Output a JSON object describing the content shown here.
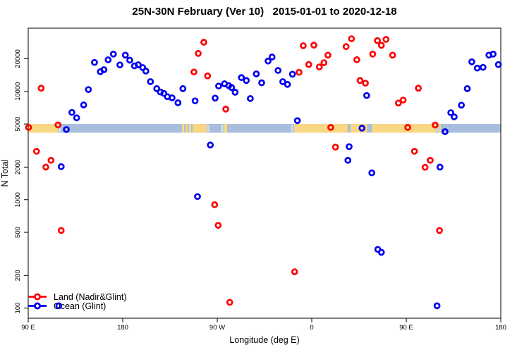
{
  "title": "25N-30N February (Ver 10)   2015-01-01 to 2020-12-18",
  "chart_data": {
    "type": "scatter",
    "title": "25N-30N February (Ver 10)   2015-01-01 to 2020-12-18",
    "xlabel": "Longitude (deg E)",
    "ylabel": "N Total",
    "x_axis": {
      "note": "axis runs 90E eastward to 180 (450 deg span); x values are degrees east of 90E",
      "range_deg": [
        0,
        450
      ],
      "tick_positions_deg": [
        0,
        90,
        180,
        270,
        360,
        450
      ],
      "tick_labels": [
        "90 E",
        "180",
        "90 W",
        "0",
        "90 E",
        "180"
      ]
    },
    "y_axis": {
      "scale": "log",
      "range": [
        81,
        38300
      ],
      "ticks": [
        100,
        200,
        500,
        1000,
        2000,
        5000,
        10000,
        20000
      ],
      "tick_labels": [
        "100",
        "200",
        "500",
        "1000",
        "2000",
        "5000",
        "10000",
        "20000"
      ]
    },
    "grid": false,
    "legend_position": "bottom-left",
    "legend": [
      {
        "label": "Land (Nadir&Glint)",
        "color": "#FF0000"
      },
      {
        "label": "Ocean (Glint)",
        "color": "#0000EE"
      }
    ],
    "surface_band": {
      "description": "land/ocean strip drawn across plot at N ~ 4600",
      "center_n": 4600,
      "ocean_color": "#A9BEDC",
      "land_color": "#F8D784",
      "shallow_color": "#CBDAEE",
      "land_segments_deg": [
        [
          0,
          28.9
        ],
        [
          146.4,
          148.4
        ],
        [
          149.8,
          151.8
        ],
        [
          153.1,
          155.1
        ],
        [
          156.5,
          169.9
        ],
        [
          186.0,
          189.4
        ],
        [
          253.2,
          388.1
        ],
        [
          390.8,
          392.9
        ]
      ],
      "ocean_inlets_deg": [
        [
          304.2,
          306.9
        ],
        [
          322.8,
          327.2
        ]
      ],
      "shallow_patches_deg": [
        [
          29.3,
          31.3
        ],
        [
          170.3,
          172.8
        ],
        [
          183.5,
          185.7
        ],
        [
          250.3,
          252.6
        ],
        [
          388.5,
          390.3
        ]
      ]
    },
    "series": [
      {
        "name": "Land (Nadir&Glint)",
        "color": "#FF0000",
        "marker": "open-circle",
        "points": [
          [
            12.3,
            10700
          ],
          [
            28.4,
            4900
          ],
          [
            0.3,
            4650
          ],
          [
            7.9,
            2800
          ],
          [
            21.7,
            2310
          ],
          [
            16.8,
            2000
          ],
          [
            31.4,
            520
          ],
          [
            167.2,
            28400
          ],
          [
            161.9,
            22400
          ],
          [
            157.8,
            15100
          ],
          [
            170.8,
            13900
          ],
          [
            188.1,
            6860
          ],
          [
            257.9,
            15000
          ],
          [
            267.1,
            17700
          ],
          [
            277.2,
            16800
          ],
          [
            281.6,
            18400
          ],
          [
            285.4,
            21600
          ],
          [
            261.9,
            26400
          ],
          [
            272.0,
            26700
          ],
          [
            302.7,
            25900
          ],
          [
            307.8,
            30600
          ],
          [
            332.5,
            29400
          ],
          [
            336.3,
            26600
          ],
          [
            340.7,
            30200
          ],
          [
            328.0,
            22100
          ],
          [
            347.0,
            21600
          ],
          [
            312.9,
            19600
          ],
          [
            316.0,
            12600
          ],
          [
            321.1,
            11900
          ],
          [
            371.5,
            10700
          ],
          [
            357.0,
            8300
          ],
          [
            352.5,
            7800
          ],
          [
            361.4,
            4650
          ],
          [
            387.5,
            4890
          ],
          [
            288.1,
            4650
          ],
          [
            292.6,
            3060
          ],
          [
            177.5,
            900
          ],
          [
            180.9,
            580
          ],
          [
            253.7,
            216
          ],
          [
            191.9,
            113
          ],
          [
            367.8,
            2800
          ],
          [
            382.8,
            2310
          ],
          [
            377.9,
            1990
          ],
          [
            391.6,
            520
          ]
        ]
      },
      {
        "name": "Ocean (Glint)",
        "color": "#0000EE",
        "marker": "open-circle",
        "points": [
          [
            63.1,
            18500
          ],
          [
            68.7,
            15200
          ],
          [
            72.1,
            15850
          ],
          [
            76.1,
            19550
          ],
          [
            81.1,
            22100
          ],
          [
            87.3,
            17550
          ],
          [
            92.5,
            21600
          ],
          [
            96.7,
            19400
          ],
          [
            101.2,
            17200
          ],
          [
            104.8,
            17600
          ],
          [
            109.0,
            16600
          ],
          [
            112.0,
            15400
          ],
          [
            116.4,
            12300
          ],
          [
            122.4,
            10600
          ],
          [
            125.8,
            9870
          ],
          [
            129.2,
            9580
          ],
          [
            132.5,
            8940
          ],
          [
            137.0,
            8710
          ],
          [
            142.6,
            7850
          ],
          [
            147.3,
            10600
          ],
          [
            57.3,
            10400
          ],
          [
            52.8,
            7500
          ],
          [
            41.6,
            6390
          ],
          [
            46.1,
            5700
          ],
          [
            36.3,
            4450
          ],
          [
            228.4,
            19050
          ],
          [
            232.2,
            20750
          ],
          [
            217.2,
            14500
          ],
          [
            203.0,
            13400
          ],
          [
            207.7,
            12600
          ],
          [
            181.3,
            11200
          ],
          [
            186.9,
            11750
          ],
          [
            190.9,
            11300
          ],
          [
            193.6,
            10860
          ],
          [
            197.0,
            9820
          ],
          [
            178.0,
            8670
          ],
          [
            158.9,
            8170
          ],
          [
            211.5,
            8590
          ],
          [
            222.3,
            12000
          ],
          [
            237.9,
            15600
          ],
          [
            242.4,
            12300
          ],
          [
            246.9,
            11600
          ],
          [
            251.6,
            14400
          ],
          [
            256.3,
            5370
          ],
          [
            173.4,
            3200
          ],
          [
            161.2,
            1070
          ],
          [
            322.3,
            9160
          ],
          [
            422.4,
            18750
          ],
          [
            427.6,
            16400
          ],
          [
            433.1,
            16670
          ],
          [
            438.7,
            21600
          ],
          [
            442.7,
            22100
          ],
          [
            447.7,
            17670
          ],
          [
            418.1,
            10600
          ],
          [
            412.5,
            7460
          ],
          [
            402.4,
            6360
          ],
          [
            405.6,
            5820
          ],
          [
            396.9,
            4250
          ],
          [
            317.8,
            4580
          ],
          [
            305.6,
            3090
          ],
          [
            304.4,
            2310
          ],
          [
            327.2,
            1770
          ],
          [
            392.1,
            2000
          ],
          [
            332.9,
            348
          ],
          [
            336.3,
            327
          ],
          [
            389.3,
            105
          ],
          [
            29.1,
            105
          ],
          [
            31.4,
            2020
          ]
        ]
      }
    ]
  }
}
